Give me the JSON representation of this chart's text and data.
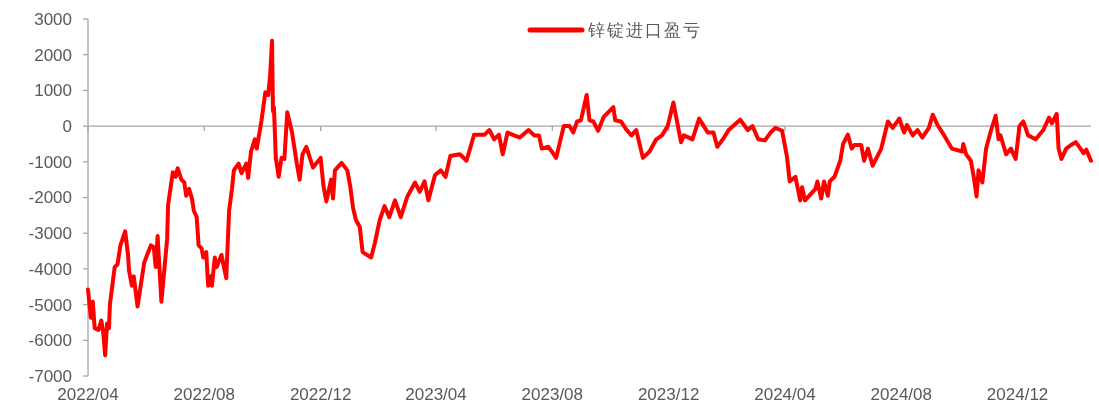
{
  "chart_data": {
    "type": "line",
    "legend": "top",
    "grid": false,
    "ref_lines": [
      {
        "axis": "y",
        "value": 0,
        "color": "#a6a6a6"
      }
    ],
    "xlim": [
      "2022-04-01",
      "2025-02-16"
    ],
    "xticks": [
      {
        "value": "2022-04-01",
        "label": "2022/04"
      },
      {
        "value": "2022-08-01",
        "label": "2022/08"
      },
      {
        "value": "2022-12-01",
        "label": "2022/12"
      },
      {
        "value": "2023-04-01",
        "label": "2023/04"
      },
      {
        "value": "2023-08-01",
        "label": "2023/08"
      },
      {
        "value": "2023-12-01",
        "label": "2023/12"
      },
      {
        "value": "2024-04-01",
        "label": "2024/04"
      },
      {
        "value": "2024-08-01",
        "label": "2024/08"
      },
      {
        "value": "2024-12-01",
        "label": "2024/12"
      }
    ],
    "ylim": [
      -7000,
      3000
    ],
    "yticks": [
      -7000,
      -6000,
      -5000,
      -4000,
      -3000,
      -2000,
      -1000,
      0,
      1000,
      2000,
      3000
    ],
    "x": [
      "2022-04-01",
      "2022-04-04",
      "2022-04-06",
      "2022-04-08",
      "2022-04-12",
      "2022-04-15",
      "2022-04-17",
      "2022-04-19",
      "2022-04-21",
      "2022-04-23",
      "2022-04-24",
      "2022-04-29",
      "2022-05-02",
      "2022-05-05",
      "2022-05-10",
      "2022-05-13",
      "2022-05-14",
      "2022-05-17",
      "2022-05-19",
      "2022-05-23",
      "2022-05-30",
      "2022-06-06",
      "2022-06-09",
      "2022-06-11",
      "2022-06-13",
      "2022-06-17",
      "2022-06-23",
      "2022-06-24",
      "2022-06-29",
      "2022-07-02",
      "2022-07-04",
      "2022-07-08",
      "2022-07-11",
      "2022-07-13",
      "2022-07-16",
      "2022-07-19",
      "2022-07-21",
      "2022-07-24",
      "2022-07-26",
      "2022-07-29",
      "2022-07-31",
      "2022-08-03",
      "2022-08-05",
      "2022-08-08",
      "2022-08-09",
      "2022-08-12",
      "2022-08-14",
      "2022-08-19",
      "2022-08-21",
      "2022-08-24",
      "2022-08-27",
      "2022-08-30",
      "2022-09-01",
      "2022-09-06",
      "2022-09-09",
      "2022-09-14",
      "2022-09-16",
      "2022-09-19",
      "2022-09-23",
      "2022-09-25",
      "2022-09-30",
      "2022-10-04",
      "2022-10-07",
      "2022-10-09",
      "2022-10-11",
      "2022-10-12",
      "2022-10-13",
      "2022-10-15",
      "2022-10-18",
      "2022-10-21",
      "2022-10-24",
      "2022-10-27",
      "2022-11-01",
      "2022-11-06",
      "2022-11-09",
      "2022-11-12",
      "2022-11-16",
      "2022-11-23",
      "2022-12-01",
      "2022-12-04",
      "2022-12-07",
      "2022-12-12",
      "2022-12-14",
      "2022-12-16",
      "2022-12-23",
      "2022-12-29",
      "2023-01-01",
      "2023-01-04",
      "2023-01-07",
      "2023-01-11",
      "2023-01-14",
      "2023-01-23",
      "2023-01-27",
      "2023-02-01",
      "2023-02-06",
      "2023-02-11",
      "2023-02-17",
      "2023-02-23",
      "2023-03-02",
      "2023-03-10",
      "2023-03-15",
      "2023-03-20",
      "2023-03-24",
      "2023-03-31",
      "2023-04-06",
      "2023-04-11",
      "2023-04-16",
      "2023-04-26",
      "2023-05-03",
      "2023-05-11",
      "2023-05-22",
      "2023-05-27",
      "2023-06-01",
      "2023-06-06",
      "2023-06-10",
      "2023-06-15",
      "2023-06-22",
      "2023-06-28",
      "2023-07-07",
      "2023-07-13",
      "2023-07-18",
      "2023-07-21",
      "2023-07-28",
      "2023-08-05",
      "2023-08-13",
      "2023-08-19",
      "2023-08-23",
      "2023-08-27",
      "2023-08-31",
      "2023-09-06",
      "2023-09-09",
      "2023-09-13",
      "2023-09-18",
      "2023-09-24",
      "2023-10-04",
      "2023-10-06",
      "2023-10-12",
      "2023-10-18",
      "2023-10-23",
      "2023-10-28",
      "2023-11-04",
      "2023-11-11",
      "2023-11-18",
      "2023-11-24",
      "2023-11-30",
      "2023-12-06",
      "2023-12-14",
      "2023-12-17",
      "2023-12-26",
      "2024-01-02",
      "2024-01-11",
      "2024-01-17",
      "2024-01-21",
      "2024-01-27",
      "2024-02-02",
      "2024-02-14",
      "2024-02-22",
      "2024-02-27",
      "2024-03-04",
      "2024-03-11",
      "2024-03-17",
      "2024-03-22",
      "2024-03-29",
      "2024-04-03",
      "2024-04-06",
      "2024-04-12",
      "2024-04-17",
      "2024-04-19",
      "2024-04-22",
      "2024-05-03",
      "2024-05-05",
      "2024-05-09",
      "2024-05-12",
      "2024-05-16",
      "2024-05-18",
      "2024-05-23",
      "2024-05-29",
      "2024-06-01",
      "2024-06-06",
      "2024-06-10",
      "2024-06-13",
      "2024-06-20",
      "2024-06-23",
      "2024-06-27",
      "2024-07-02",
      "2024-07-11",
      "2024-07-18",
      "2024-07-23",
      "2024-07-30",
      "2024-08-04",
      "2024-08-07",
      "2024-08-13",
      "2024-08-18",
      "2024-08-23",
      "2024-08-30",
      "2024-09-03",
      "2024-09-08",
      "2024-09-15",
      "2024-09-23",
      "2024-10-04",
      "2024-10-05",
      "2024-10-08",
      "2024-10-13",
      "2024-10-16",
      "2024-10-19",
      "2024-10-21",
      "2024-10-25",
      "2024-10-29",
      "2024-11-03",
      "2024-11-08",
      "2024-11-11",
      "2024-11-13",
      "2024-11-19",
      "2024-11-24",
      "2024-11-29",
      "2024-12-03",
      "2024-12-07",
      "2024-12-12",
      "2024-12-20",
      "2024-12-28",
      "2025-01-03",
      "2025-01-06",
      "2025-01-11",
      "2025-01-13",
      "2025-01-16",
      "2025-01-21",
      "2025-01-26",
      "2025-01-31",
      "2025-02-05",
      "2025-02-08",
      "2025-02-11",
      "2025-02-16"
    ],
    "series": [
      {
        "name": "锌锭进口盈亏",
        "color": "#ff0000",
        "values": [
          -4580,
          -5370,
          -4920,
          -5660,
          -5710,
          -5450,
          -5790,
          -6420,
          -5530,
          -5660,
          -5000,
          -3950,
          -3870,
          -3340,
          -2950,
          -3610,
          -4050,
          -4470,
          -4210,
          -5050,
          -3820,
          -3340,
          -3390,
          -3950,
          -3080,
          -4920,
          -3160,
          -2210,
          -1290,
          -1420,
          -1180,
          -1500,
          -1580,
          -1950,
          -1760,
          -2030,
          -2370,
          -2550,
          -3340,
          -3420,
          -3680,
          -3530,
          -4470,
          -4210,
          -4470,
          -3680,
          -3950,
          -3610,
          -3870,
          -4260,
          -2370,
          -1760,
          -1240,
          -1050,
          -1320,
          -1050,
          -1450,
          -710,
          -370,
          -630,
          160,
          950,
          870,
          1400,
          2390,
          420,
          530,
          -890,
          -1420,
          -890,
          -920,
          390,
          -180,
          -1050,
          -1500,
          -790,
          -580,
          -1160,
          -890,
          -1680,
          -2110,
          -1500,
          -2030,
          -1240,
          -1030,
          -1240,
          -1680,
          -2290,
          -2630,
          -2820,
          -3530,
          -3680,
          -3260,
          -2630,
          -2240,
          -2550,
          -2080,
          -2550,
          -1970,
          -1580,
          -1840,
          -1550,
          -2080,
          -1370,
          -1240,
          -1420,
          -840,
          -790,
          -970,
          -240,
          -240,
          -110,
          -370,
          -240,
          -790,
          -180,
          -260,
          -320,
          -110,
          -260,
          -260,
          -630,
          -580,
          -890,
          0,
          0,
          -180,
          130,
          160,
          870,
          160,
          130,
          -130,
          260,
          530,
          160,
          130,
          -110,
          -260,
          -110,
          -890,
          -710,
          -370,
          -260,
          0,
          660,
          -450,
          -260,
          -370,
          210,
          -180,
          -180,
          -580,
          -370,
          -110,
          180,
          -110,
          0,
          -370,
          -400,
          -180,
          -50,
          -130,
          -840,
          -1550,
          -1420,
          -2080,
          -1710,
          -2080,
          -1760,
          -1550,
          -2030,
          -1550,
          -1950,
          -1550,
          -1420,
          -970,
          -500,
          -240,
          -630,
          -530,
          -530,
          -970,
          -630,
          -1110,
          -630,
          130,
          -50,
          210,
          -180,
          30,
          -260,
          -110,
          -320,
          -50,
          320,
          30,
          -260,
          -630,
          -710,
          -500,
          -790,
          -970,
          -1420,
          -1970,
          -1240,
          -1580,
          -630,
          -130,
          290,
          -370,
          -260,
          -790,
          -630,
          -920,
          0,
          130,
          -260,
          -370,
          -110,
          240,
          80,
          340,
          -630,
          -920,
          -630,
          -530,
          -450,
          -630,
          -760,
          -660,
          -970
        ]
      }
    ]
  }
}
